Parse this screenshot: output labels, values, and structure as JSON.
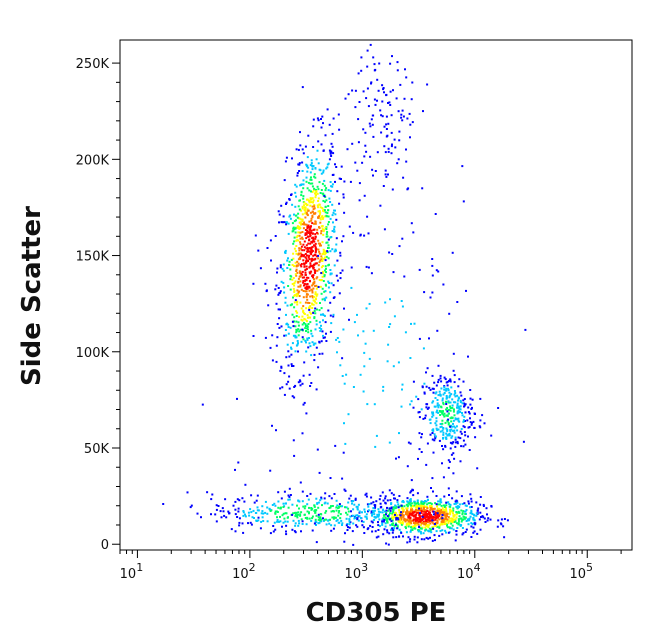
{
  "chart_data": {
    "type": "scatter",
    "xlabel": "CD305 PE",
    "ylabel": "Side Scatter",
    "x_scale": "log",
    "xlim": [
      7,
      250000
    ],
    "ylim": [
      -3000,
      262000
    ],
    "grid": false,
    "x_ticks": [
      {
        "value": 10,
        "base": "10",
        "exp": "1"
      },
      {
        "value": 100,
        "base": "10",
        "exp": "2"
      },
      {
        "value": 1000,
        "base": "10",
        "exp": "3"
      },
      {
        "value": 10000,
        "base": "10",
        "exp": "4"
      },
      {
        "value": 100000,
        "base": "10",
        "exp": "5"
      }
    ],
    "y_ticks": [
      {
        "value": 0,
        "label": "0"
      },
      {
        "value": 50000,
        "label": "50K"
      },
      {
        "value": 100000,
        "label": "100K"
      },
      {
        "value": 150000,
        "label": "150K"
      },
      {
        "value": 200000,
        "label": "200K"
      },
      {
        "value": 250000,
        "label": "250K"
      }
    ],
    "colormap": [
      "#0000ff",
      "#00c8ff",
      "#00ff64",
      "#ffff00",
      "#ff8000",
      "#ff0000"
    ],
    "populations": [
      {
        "x_center": 330,
        "y_center": 150000,
        "x_spread_log": 0.13,
        "y_spread": 28000,
        "tilt": 0.3,
        "weight": 0.3
      },
      {
        "x_center": 3500,
        "y_center": 15000,
        "x_spread_log": 0.25,
        "y_spread": 5000,
        "tilt": 0.0,
        "weight": 0.26
      },
      {
        "x_center": 5500,
        "y_center": 68000,
        "x_spread_log": 0.12,
        "y_spread": 11000,
        "tilt": 0.0,
        "weight": 0.1
      },
      {
        "x_center": 350,
        "y_center": 17000,
        "x_spread_log": 0.45,
        "y_spread": 5000,
        "tilt": 0.0,
        "weight": 0.12
      },
      {
        "x_center": 1500,
        "y_center": 220000,
        "x_spread_log": 0.15,
        "y_spread": 25000,
        "tilt": 0.0,
        "weight": 0.04
      },
      {
        "x_center": 1200,
        "y_center": 90000,
        "x_spread_log": 0.6,
        "y_spread": 55000,
        "tilt": 0.0,
        "weight": 0.06
      }
    ]
  }
}
